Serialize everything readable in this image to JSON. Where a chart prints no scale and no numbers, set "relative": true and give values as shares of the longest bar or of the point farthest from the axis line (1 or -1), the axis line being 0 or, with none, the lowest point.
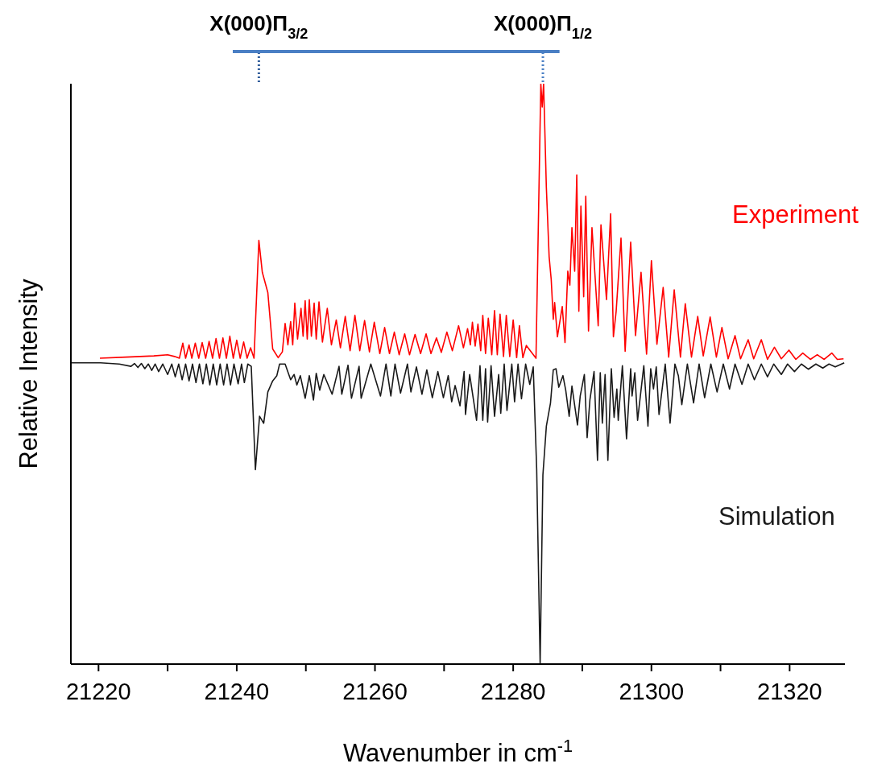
{
  "chart_data": {
    "type": "line",
    "relative": true,
    "xlabel": "Wavenumber in cm$^{-1}$",
    "ylabel": "Relative Intensity",
    "marker": "none",
    "xlim": [
      21216,
      21328
    ],
    "xticks": [
      21220,
      {
        "value": 21230,
        "label": null
      },
      21240,
      {
        "value": 21250,
        "label": null
      },
      21260,
      {
        "value": 21270,
        "label": null
      },
      21280,
      {
        "value": 21290,
        "label": null
      },
      21300,
      {
        "value": 21310,
        "label": null
      },
      21320
    ],
    "ref_lines": [
      {
        "axis": "x",
        "value": 21243.2,
        "label": "X(000)Π$_{3/2}$",
        "color": "#2f5b9a",
        "line_style": "dotted"
      },
      {
        "axis": "x",
        "value": 21284.3,
        "label": "X(000)Π$_{1/2}$",
        "color": "#4a7fc4",
        "line_style": "dotted"
      }
    ],
    "series": [
      {
        "name": "Experiment",
        "color": "#ff0000",
        "x": [
          21220.2,
          21224,
          21228,
          21230,
          21231,
          21231.7,
          21232.2,
          21232.6,
          21233.1,
          21233.5,
          21234.0,
          21234.5,
          21235.0,
          21235.5,
          21236.0,
          21236.5,
          21237.0,
          21237.5,
          21238.0,
          21238.5,
          21239.0,
          21239.5,
          21240.0,
          21240.5,
          21241.0,
          21241.5,
          21242.0,
          21242.5,
          21243.2,
          21243.7,
          21244.5,
          21245.2,
          21246.0,
          21246.6,
          21247.0,
          21247.4,
          21247.8,
          21248.1,
          21248.4,
          21248.8,
          21249.3,
          21249.6,
          21249.9,
          21250.2,
          21250.5,
          21250.8,
          21251.2,
          21251.5,
          21251.9,
          21252.4,
          21253.1,
          21253.7,
          21254.4,
          21255.0,
          21255.7,
          21256.4,
          21257.1,
          21257.8,
          21258.5,
          21259.2,
          21259.9,
          21260.7,
          21261.4,
          21262.1,
          21262.8,
          21263.5,
          21264.3,
          21265.0,
          21265.8,
          21266.6,
          21267.4,
          21268.1,
          21268.9,
          21269.6,
          21270.4,
          21271.2,
          21272.1,
          21272.8,
          21273.4,
          21273.8,
          21274.1,
          21274.5,
          21274.9,
          21275.3,
          21275.6,
          21276.0,
          21276.4,
          21276.9,
          21277.3,
          21277.7,
          21278.1,
          21278.6,
          21279.0,
          21279.5,
          21280.0,
          21280.5,
          21280.9,
          21281.4,
          21281.9,
          21283.3,
          21284.0,
          21284.2,
          21284.4,
          21284.8,
          21285.2,
          21285.5,
          21285.8,
          21286.0,
          21286.4,
          21287.1,
          21287.5,
          21287.9,
          21288.2,
          21288.5,
          21288.9,
          21289.2,
          21289.5,
          21289.8,
          21290.2,
          21290.5,
          21290.9,
          21291.4,
          21292.3,
          21292.7,
          21293.5,
          21294.1,
          21294.5,
          21294.9,
          21295.6,
          21296.2,
          21297.0,
          21297.7,
          21298.5,
          21299.3,
          21300.0,
          21300.8,
          21301.7,
          21302.5,
          21303.3,
          21304.2,
          21304.9,
          21305.8,
          21306.7,
          21307.5,
          21308.5,
          21309.4,
          21310.2,
          21311.1,
          21312.1,
          21312.9,
          21314.0,
          21314.8,
          21315.9,
          21316.8,
          21317.8,
          21318.8,
          21319.9,
          21320.9,
          21321.9,
          21323.0,
          21324.0,
          21325.0,
          21326.1,
          21326.9,
          21327.8
        ],
        "values": [
          0.527,
          0.529,
          0.531,
          0.533,
          0.53,
          0.527,
          0.553,
          0.527,
          0.55,
          0.527,
          0.553,
          0.527,
          0.554,
          0.527,
          0.556,
          0.527,
          0.561,
          0.527,
          0.562,
          0.527,
          0.565,
          0.527,
          0.558,
          0.527,
          0.555,
          0.527,
          0.545,
          0.527,
          0.73,
          0.675,
          0.64,
          0.543,
          0.528,
          0.538,
          0.587,
          0.55,
          0.59,
          0.55,
          0.622,
          0.56,
          0.613,
          0.565,
          0.626,
          0.56,
          0.628,
          0.565,
          0.622,
          0.56,
          0.624,
          0.555,
          0.613,
          0.55,
          0.593,
          0.545,
          0.599,
          0.54,
          0.601,
          0.54,
          0.592,
          0.538,
          0.589,
          0.535,
          0.58,
          0.535,
          0.572,
          0.533,
          0.569,
          0.533,
          0.568,
          0.535,
          0.569,
          0.535,
          0.562,
          0.537,
          0.572,
          0.54,
          0.583,
          0.545,
          0.578,
          0.55,
          0.589,
          0.548,
          0.586,
          0.54,
          0.601,
          0.535,
          0.596,
          0.533,
          0.609,
          0.533,
          0.603,
          0.53,
          0.601,
          0.53,
          0.593,
          0.528,
          0.583,
          0.528,
          0.549,
          0.527,
          1,
          0.96,
          1,
          0.821,
          0.702,
          0.663,
          0.594,
          0.623,
          0.564,
          0.616,
          0.554,
          0.677,
          0.653,
          0.752,
          0.677,
          0.843,
          0.608,
          0.789,
          0.633,
          0.806,
          0.574,
          0.752,
          0.583,
          0.757,
          0.628,
          0.776,
          0.564,
          0.608,
          0.734,
          0.539,
          0.727,
          0.566,
          0.675,
          0.534,
          0.695,
          0.551,
          0.649,
          0.529,
          0.645,
          0.529,
          0.621,
          0.529,
          0.599,
          0.531,
          0.598,
          0.529,
          0.58,
          0.526,
          0.566,
          0.526,
          0.559,
          0.526,
          0.559,
          0.525,
          0.546,
          0.526,
          0.541,
          0.525,
          0.536,
          0.525,
          0.533,
          0.525,
          0.536,
          0.525,
          0.526
        ]
      },
      {
        "name": "Simulation",
        "color": "#1a1a1a",
        "x": [
          21216,
          21220.3,
          21223,
          21224.7,
          21225.2,
          21225.7,
          21226.2,
          21226.7,
          21227.2,
          21227.7,
          21228.2,
          21228.7,
          21229.3,
          21230.0,
          21230.6,
          21231.1,
          21231.6,
          21232.1,
          21232.6,
          21233.1,
          21233.6,
          21234.1,
          21234.6,
          21235.1,
          21235.6,
          21236.1,
          21236.6,
          21237.1,
          21237.6,
          21238.1,
          21238.6,
          21239.1,
          21239.6,
          21240.2,
          21240.7,
          21241.1,
          21241.6,
          21242.1,
          21242.7,
          21243.3,
          21243.9,
          21244.5,
          21245.2,
          21245.8,
          21246.2,
          21247.0,
          21247.8,
          21248.3,
          21248.7,
          21249.2,
          21249.9,
          21250.5,
          21251.1,
          21251.5,
          21252.0,
          21252.6,
          21253.8,
          21254.8,
          21255.2,
          21256.1,
          21256.6,
          21257.7,
          21258.0,
          21259.4,
          21260.8,
          21261.6,
          21262.3,
          21262.9,
          21263.7,
          21264.7,
          21265.2,
          21266.0,
          21266.8,
          21267.5,
          21268.3,
          21269.1,
          21269.9,
          21270.6,
          21271.1,
          21271.6,
          21272.3,
          21272.9,
          21273.1,
          21273.7,
          21274.7,
          21275.2,
          21275.6,
          21276.0,
          21276.3,
          21276.8,
          21277.3,
          21277.9,
          21278.2,
          21278.7,
          21279.1,
          21279.8,
          21280.2,
          21280.7,
          21281.2,
          21281.8,
          21282.4,
          21282.9,
          21283.4,
          21283.9,
          21284.3,
          21284.8,
          21285.4,
          21285.8,
          21286.2,
          21286.6,
          21287.2,
          21287.6,
          21288.1,
          21288.5,
          21289.3,
          21289.7,
          21290.3,
          21290.7,
          21291.1,
          21291.7,
          21292.2,
          21292.6,
          21292.9,
          21293.3,
          21293.7,
          21294.2,
          21294.6,
          21295.0,
          21295.2,
          21295.8,
          21296.4,
          21297.0,
          21297.2,
          21297.6,
          21298.0,
          21298.9,
          21299.5,
          21299.9,
          21300.3,
          21300.7,
          21301.1,
          21302.0,
          21302.7,
          21303.4,
          21303.9,
          21304.4,
          21305.2,
          21306.1,
          21306.9,
          21307.7,
          21308.6,
          21309.5,
          21310.4,
          21311.3,
          21312.1,
          21313.1,
          21314.0,
          21314.9,
          21315.9,
          21316.8,
          21317.7,
          21318.8,
          21319.7,
          21320.7,
          21321.7,
          21322.7,
          21323.8,
          21324.8,
          21325.7,
          21326.6,
          21327.9
        ],
        "values": [
          0.519,
          0.519,
          0.517,
          0.513,
          0.518,
          0.511,
          0.518,
          0.509,
          0.517,
          0.506,
          0.517,
          0.504,
          0.517,
          0.499,
          0.517,
          0.495,
          0.517,
          0.49,
          0.517,
          0.488,
          0.517,
          0.485,
          0.517,
          0.483,
          0.517,
          0.481,
          0.517,
          0.481,
          0.517,
          0.481,
          0.517,
          0.481,
          0.517,
          0.483,
          0.517,
          0.485,
          0.517,
          0.513,
          0.335,
          0.427,
          0.415,
          0.469,
          0.488,
          0.497,
          0.517,
          0.517,
          0.49,
          0.499,
          0.481,
          0.497,
          0.458,
          0.497,
          0.455,
          0.501,
          0.472,
          0.499,
          0.465,
          0.513,
          0.465,
          0.515,
          0.458,
          0.513,
          0.458,
          0.517,
          0.462,
          0.517,
          0.462,
          0.517,
          0.467,
          0.517,
          0.469,
          0.512,
          0.465,
          0.507,
          0.459,
          0.504,
          0.459,
          0.497,
          0.452,
          0.48,
          0.445,
          0.504,
          0.43,
          0.499,
          0.42,
          0.514,
          0.42,
          0.509,
          0.417,
          0.514,
          0.427,
          0.499,
          0.432,
          0.517,
          0.437,
          0.517,
          0.452,
          0.517,
          0.457,
          0.517,
          0.482,
          0.512,
          0.336,
          0.0,
          0.326,
          0.41,
          0.45,
          0.507,
          0.509,
          0.477,
          0.497,
          0.472,
          0.427,
          0.479,
          0.412,
          0.462,
          0.499,
          0.39,
          0.455,
          0.504,
          0.351,
          0.502,
          0.415,
          0.499,
          0.351,
          0.509,
          0.425,
          0.474,
          0.42,
          0.514,
          0.388,
          0.509,
          0.462,
          0.502,
          0.42,
          0.514,
          0.41,
          0.509,
          0.474,
          0.512,
          0.43,
          0.517,
          0.415,
          0.517,
          0.497,
          0.447,
          0.517,
          0.45,
          0.517,
          0.459,
          0.517,
          0.469,
          0.517,
          0.474,
          0.517,
          0.482,
          0.517,
          0.49,
          0.517,
          0.495,
          0.517,
          0.499,
          0.517,
          0.504,
          0.517,
          0.508,
          0.517,
          0.51,
          0.517,
          0.512,
          0.519
        ]
      }
    ]
  }
}
